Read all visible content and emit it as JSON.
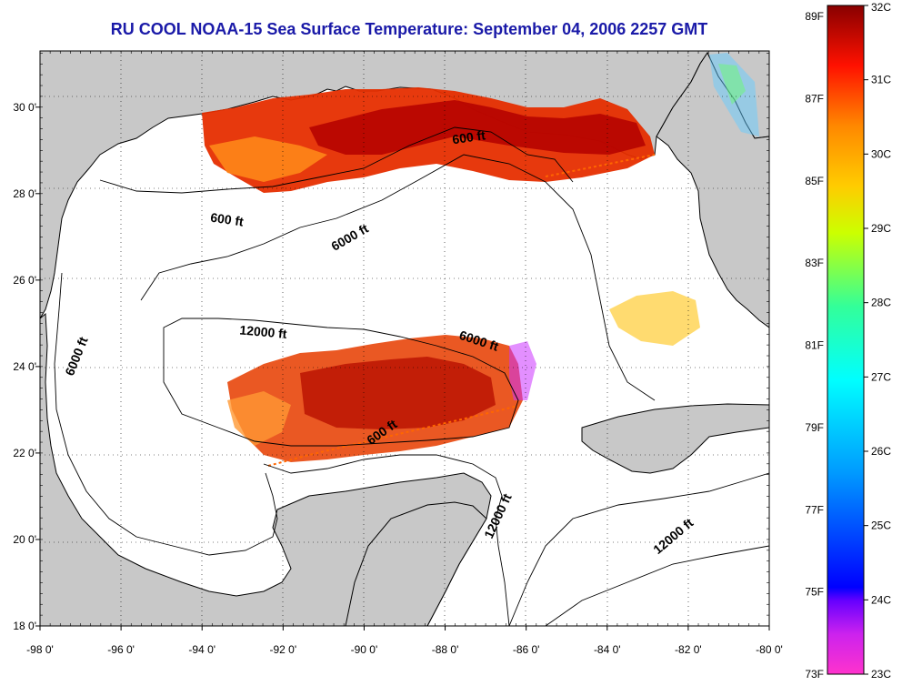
{
  "title": "RU COOL  NOAA-15  Sea Surface Temperature:  September 04, 2006 2257 GMT",
  "axes": {
    "lon_ticks": [
      "-98 0'",
      "-96 0'",
      "-94 0'",
      "-92 0'",
      "-90 0'",
      "-88 0'",
      "-86 0'",
      "-84 0'",
      "-82 0'",
      "-80 0'"
    ],
    "lat_ticks": [
      "30 0'",
      "28 0'",
      "26 0'",
      "24 0'",
      "22 0'",
      "20 0'",
      "18 0'"
    ],
    "lon_range": [
      -98,
      -80
    ],
    "lat_range": [
      18,
      31.3
    ],
    "grid": "dotted"
  },
  "contour_labels": [
    {
      "text": "600 ft",
      "lon": -93.4,
      "lat": 27.3,
      "angle": 8
    },
    {
      "text": "600 ft",
      "lon": -87.4,
      "lat": 29.2,
      "angle": -8
    },
    {
      "text": "6000 ft",
      "lon": -90.3,
      "lat": 26.9,
      "angle": -30
    },
    {
      "text": "12000 ft",
      "lon": -92.5,
      "lat": 24.7,
      "angle": 5
    },
    {
      "text": "6000 ft",
      "lon": -97.0,
      "lat": 24.2,
      "angle": -68
    },
    {
      "text": "6000 ft",
      "lon": -87.2,
      "lat": 24.5,
      "angle": 18
    },
    {
      "text": "600 ft",
      "lon": -89.5,
      "lat": 22.4,
      "angle": -35
    },
    {
      "text": "12000 ft",
      "lon": -86.6,
      "lat": 20.5,
      "angle": -65
    },
    {
      "text": "12000 ft",
      "lon": -82.3,
      "lat": 20.0,
      "angle": -40
    }
  ],
  "colorbar": {
    "fahrenheit_labels": [
      "89F",
      "87F",
      "85F",
      "83F",
      "81F",
      "79F",
      "77F",
      "75F",
      "73F"
    ],
    "celsius_labels": [
      "32C",
      "31C",
      "30C",
      "29C",
      "28C",
      "27C",
      "26C",
      "25C",
      "24C",
      "23C"
    ],
    "range_c": [
      23,
      32
    ],
    "colors": [
      "#ff33cc",
      "#9900ff",
      "#0000ff",
      "#0099ff",
      "#00ffff",
      "#33ff99",
      "#ccff00",
      "#ffcc00",
      "#ff6600",
      "#ff0000",
      "#990000"
    ]
  },
  "colors": {
    "land": "#c8c8c8",
    "water": "#ffffff",
    "title": "#1a1aa8"
  }
}
